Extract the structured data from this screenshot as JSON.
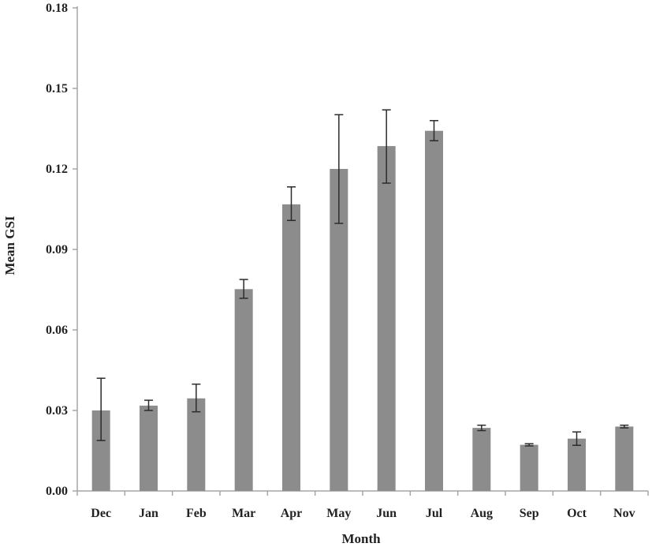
{
  "chart_data": {
    "type": "bar",
    "title": "",
    "xlabel": "Month",
    "ylabel": "Mean GSI",
    "categories": [
      "Dec",
      "Jan",
      "Feb",
      "Mar",
      "Apr",
      "May",
      "Jun",
      "Jul",
      "Aug",
      "Sep",
      "Oct",
      "Nov"
    ],
    "values": [
      0.03,
      0.0318,
      0.0345,
      0.0752,
      0.1068,
      0.12,
      0.1285,
      0.1342,
      0.0235,
      0.0172,
      0.0195,
      0.024
    ],
    "error_low": [
      0.0188,
      0.03,
      0.0295,
      0.0718,
      0.1008,
      0.0997,
      0.1147,
      0.1305,
      0.0225,
      0.0168,
      0.017,
      0.0235
    ],
    "error_high": [
      0.042,
      0.0338,
      0.0398,
      0.0788,
      0.1133,
      0.1402,
      0.142,
      0.138,
      0.0245,
      0.0176,
      0.022,
      0.0245
    ],
    "yticks": [
      "0.00",
      "0.03",
      "0.06",
      "0.09",
      "0.12",
      "0.15",
      "0.18"
    ],
    "ylim": [
      0,
      0.18
    ],
    "grid": false,
    "legend": "none",
    "bar_color": "#8c8c8c",
    "axis_color": "#a6a6a6",
    "error_color": "#2b2b2b"
  }
}
